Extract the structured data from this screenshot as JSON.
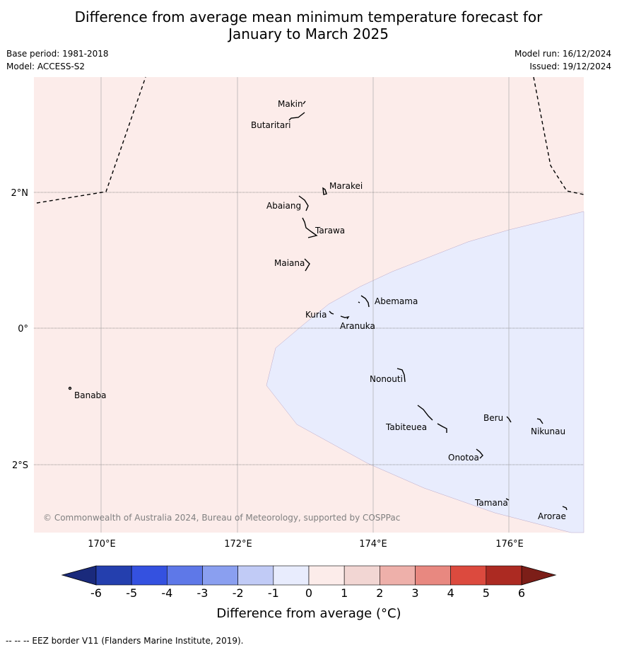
{
  "title_line1": "Difference from average mean minimum temperature forecast for",
  "title_line2": "January to March 2025",
  "meta": {
    "base_period": "Base period: 1981-2018",
    "model": "Model: ACCESS-S2",
    "model_run": "Model run: 16/12/2024",
    "issued": "Issued: 19/12/2024"
  },
  "axes": {
    "lon_ticks": [
      "170°E",
      "172°E",
      "174°E",
      "176°E"
    ],
    "lat_ticks": [
      "2°N",
      "0°",
      "2°S"
    ]
  },
  "islands": {
    "makin": "Makin",
    "butaritari": "Butaritari",
    "marakei": "Marakei",
    "abaiang": "Abaiang",
    "tarawa": "Tarawa",
    "maiana": "Maiana",
    "abemama": "Abemama",
    "kuria": "Kuria",
    "aranuka": "Aranuka",
    "banaba": "Banaba",
    "nonouti": "Nonouti",
    "beru": "Beru",
    "tabiteuea": "Tabiteuea",
    "nikunau": "Nikunau",
    "onotoa": "Onotoa",
    "tamana": "Tamana",
    "arorae": "Arorae"
  },
  "copyright": "© Commonwealth of Australia 2024, Bureau of Meteorology, supported by COSPPac",
  "colorbar": {
    "label": "Difference from average (°C)",
    "ticks": [
      "-6",
      "-5",
      "-4",
      "-3",
      "-2",
      "-1",
      "0",
      "1",
      "2",
      "3",
      "4",
      "5",
      "6"
    ],
    "colors": [
      "#243fae",
      "#3451e0",
      "#5e78e8",
      "#8a9ff0",
      "#c1cbf6",
      "#e8ecfd",
      "#fcecea",
      "#f2d6d3",
      "#eeb0aa",
      "#e88880",
      "#dc4a3e",
      "#ac2a22"
    ],
    "under_color": "#1a2a7c",
    "over_color": "#7c1e18"
  },
  "map_colors": {
    "positive_region": "#fcecea",
    "negative_region": "#e8ecfd"
  },
  "footnote": "--  --  -- EEZ border V11 (Flanders Marine Institute, 2019)."
}
